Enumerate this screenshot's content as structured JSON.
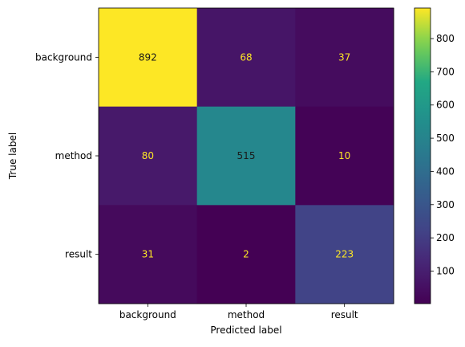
{
  "chart_data": {
    "type": "heatmap",
    "title": "",
    "xlabel": "Predicted label",
    "ylabel": "True label",
    "x_categories": [
      "background",
      "method",
      "result"
    ],
    "y_categories": [
      "background",
      "method",
      "result"
    ],
    "values": [
      [
        892,
        68,
        37
      ],
      [
        80,
        515,
        10
      ],
      [
        31,
        2,
        223
      ]
    ],
    "colormap": "viridis",
    "color_range": [
      2,
      892
    ],
    "colorbar_ticks": [
      100,
      200,
      300,
      400,
      500,
      600,
      700,
      800
    ],
    "annotation_color_dark_cells": "#fde725",
    "annotation_color_light_cells": "#1a1a1a"
  }
}
